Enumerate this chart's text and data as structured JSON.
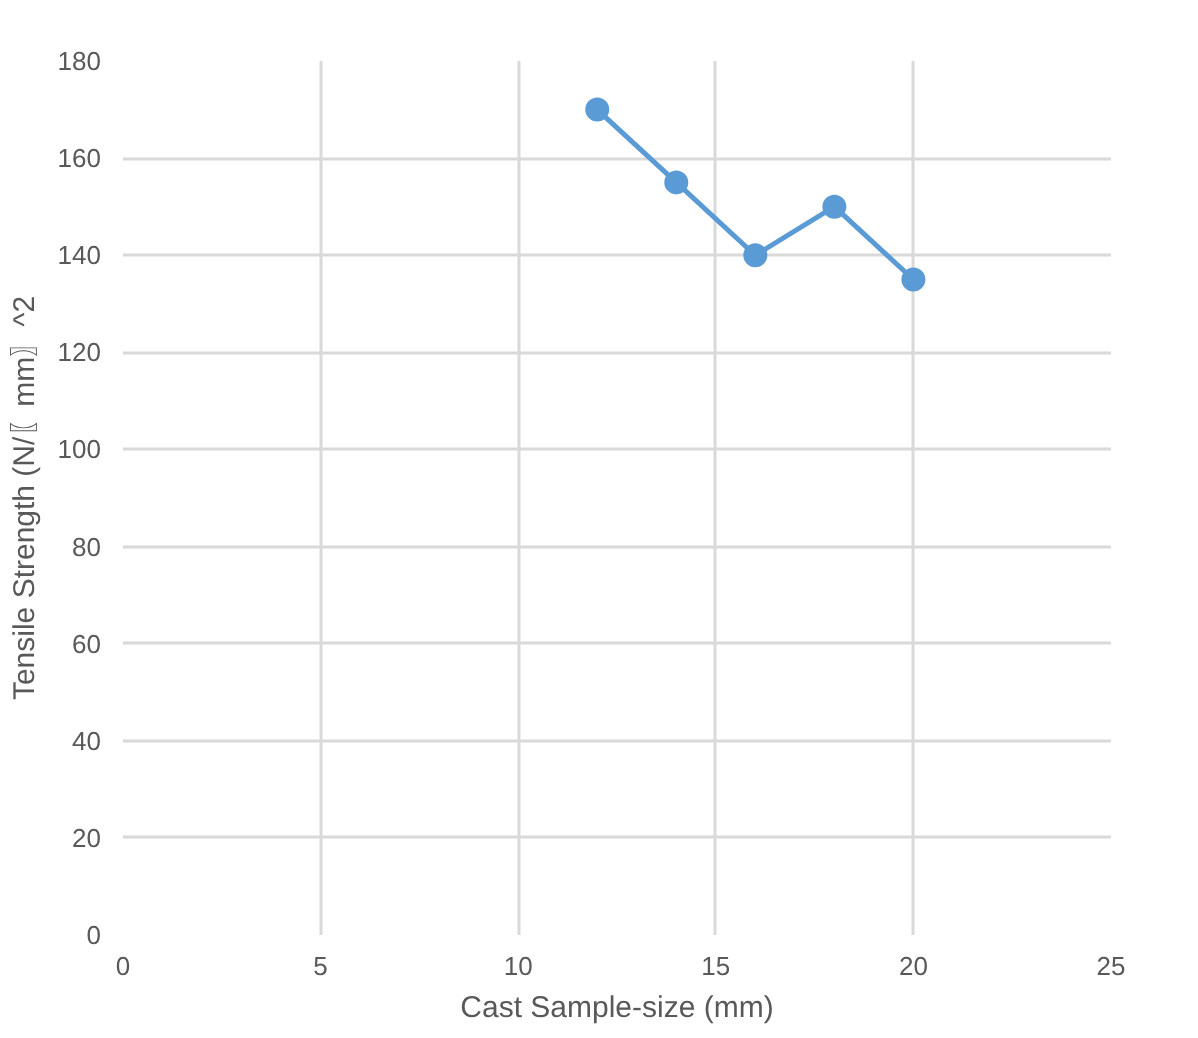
{
  "chart_data": {
    "type": "line",
    "xlabel": "Cast Sample-size (mm)",
    "ylabel": "Tensile Strength (N/〖mm〗^2",
    "x": [
      12,
      14,
      16,
      18,
      20
    ],
    "series": [
      {
        "color": "#5b9bd5",
        "values": [
          170,
          155,
          140,
          150,
          135
        ]
      }
    ],
    "xlim": [
      0,
      25
    ],
    "xticks": [
      0,
      5,
      10,
      15,
      20,
      25
    ],
    "ylim": [
      0,
      180
    ],
    "yticks": [
      0,
      20,
      40,
      60,
      80,
      100,
      120,
      140,
      160,
      180
    ],
    "grid": true,
    "marker": "circle",
    "line_style": "solid"
  }
}
